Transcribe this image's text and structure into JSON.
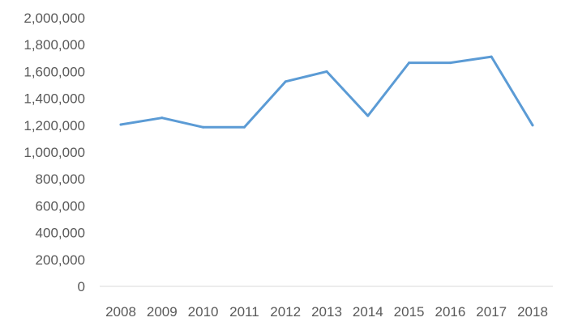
{
  "chart_data": {
    "type": "line",
    "title": "",
    "xlabel": "",
    "ylabel": "",
    "categories": [
      "2008",
      "2009",
      "2010",
      "2011",
      "2012",
      "2013",
      "2014",
      "2015",
      "2016",
      "2017",
      "2018"
    ],
    "series": [
      {
        "values": [
          1205000,
          1255000,
          1185000,
          1185000,
          1525000,
          1600000,
          1270000,
          1665000,
          1665000,
          1710000,
          1200000
        ]
      }
    ],
    "ylim": [
      0,
      2000000
    ],
    "y_ticks": [
      0,
      200000,
      400000,
      600000,
      800000,
      1000000,
      1200000,
      1400000,
      1600000,
      1800000,
      2000000
    ],
    "y_tick_labels": [
      "0",
      "200,000",
      "400,000",
      "600,000",
      "800,000",
      "1,000,000",
      "1,200,000",
      "1,400,000",
      "1,600,000",
      "1,800,000",
      "2,000,000"
    ],
    "grid": false,
    "legend": "none",
    "colors": {
      "line": "#5b9bd5",
      "axis": "#d9d9d9",
      "text": "#595959"
    }
  }
}
